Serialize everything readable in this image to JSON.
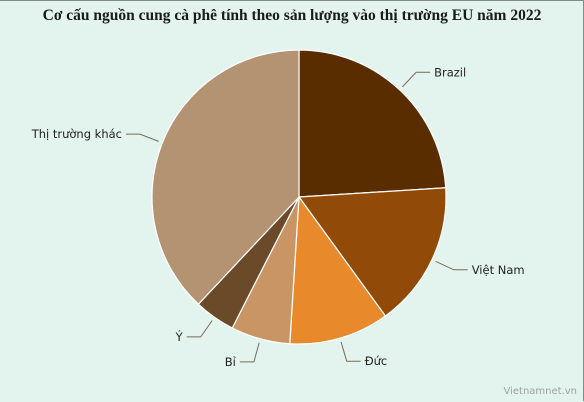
{
  "chart_data": {
    "type": "pie",
    "title": "Cơ cấu nguồn cung cà phê tính theo sản lượng vào thị trường EU năm 2022",
    "slices": [
      {
        "label": "Brazil",
        "value": 24,
        "color": "#5a2d00"
      },
      {
        "label": "Việt Nam",
        "value": 16,
        "color": "#924a08"
      },
      {
        "label": "Đức",
        "value": 11,
        "color": "#e8892b"
      },
      {
        "label": "Bỉ",
        "value": 6.5,
        "color": "#c99565"
      },
      {
        "label": "Ý",
        "value": 4.5,
        "color": "#6b4a2a"
      },
      {
        "label": "Thị trường khác",
        "value": 38,
        "color": "#b39371"
      }
    ],
    "start": "top",
    "direction": "clockwise",
    "legend": "none"
  },
  "credit": "Vietnamnet.vn"
}
